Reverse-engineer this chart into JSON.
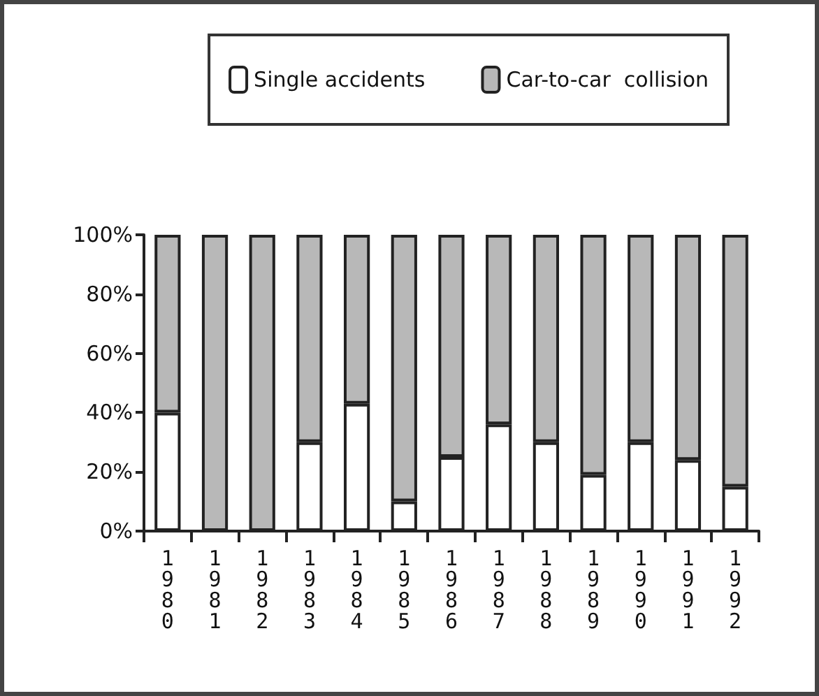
{
  "chart_data": {
    "type": "bar",
    "stacked": true,
    "categories": [
      "1980",
      "1981",
      "1982",
      "1983",
      "1984",
      "1985",
      "1986",
      "1987",
      "1988",
      "1989",
      "1990",
      "1991",
      "1992"
    ],
    "series": [
      {
        "name": "Single accidents",
        "color": "#ffffff",
        "values": [
          40,
          0,
          0,
          30,
          43,
          10,
          25,
          36,
          30,
          19,
          30,
          24,
          15
        ]
      },
      {
        "name": "Car-to-car  collision",
        "color": "#b8b8b8",
        "values": [
          60,
          100,
          100,
          70,
          57,
          90,
          75,
          64,
          70,
          81,
          70,
          76,
          85
        ]
      }
    ],
    "ylim": [
      0,
      100
    ],
    "yticks": [
      {
        "value": 0,
        "label": "0%"
      },
      {
        "value": 20,
        "label": "20%"
      },
      {
        "value": 40,
        "label": "40%"
      },
      {
        "value": 60,
        "label": "60%"
      },
      {
        "value": 80,
        "label": "80%"
      },
      {
        "value": 100,
        "label": "100%"
      }
    ],
    "grid": false,
    "legend": "top"
  }
}
